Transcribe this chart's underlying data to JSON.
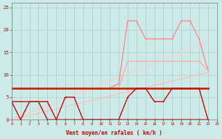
{
  "xlabel": "Vent moyen/en rafales ( km/h )",
  "xlim": [
    0,
    23
  ],
  "ylim": [
    0,
    26
  ],
  "background_color": "#cceae7",
  "grid_color": "#aacccc",
  "xlabel_color": "#cc0000",
  "tick_color": "#cc0000",
  "lines": [
    {
      "x": [
        0,
        1,
        2,
        3,
        4,
        5,
        6,
        7,
        8,
        9,
        10,
        11,
        12,
        13,
        14,
        15,
        16,
        17,
        18,
        19,
        20,
        21,
        22
      ],
      "y": [
        7,
        7,
        7,
        7,
        7,
        7,
        7,
        7,
        7,
        7,
        7,
        7,
        7,
        7,
        7,
        7,
        7,
        7,
        7,
        7,
        7,
        7,
        7
      ],
      "color": "#ffaaaa",
      "lw": 0.8,
      "marker": "+"
    },
    {
      "x": [
        0,
        1,
        2,
        3,
        4,
        5,
        6,
        7,
        8,
        9,
        10,
        11,
        12,
        13,
        14,
        15,
        16,
        17,
        18,
        19,
        20,
        21,
        22
      ],
      "y": [
        0,
        0.48,
        0.96,
        1.43,
        1.91,
        2.39,
        2.87,
        3.35,
        3.83,
        4.3,
        4.78,
        5.26,
        5.74,
        6.22,
        6.7,
        7.17,
        7.65,
        8.13,
        8.61,
        9.09,
        9.57,
        10.04,
        10.52
      ],
      "color": "#ffbbbb",
      "lw": 0.8,
      "marker": "+"
    },
    {
      "x": [
        0,
        1,
        2,
        3,
        4,
        5,
        6,
        7,
        8,
        9,
        10,
        11,
        12,
        13,
        14,
        15,
        16,
        17,
        18,
        19,
        20,
        21,
        22
      ],
      "y": [
        0,
        0.78,
        1.57,
        2.35,
        3.13,
        3.91,
        4.7,
        5.48,
        6.26,
        7.04,
        7.83,
        8.61,
        9.39,
        10.17,
        10.96,
        11.74,
        12.52,
        13.3,
        14.09,
        14.87,
        15.65,
        16.43,
        17.22
      ],
      "color": "#ffcccc",
      "lw": 0.8,
      "marker": "+"
    },
    {
      "x": [
        0,
        1,
        2,
        3,
        4,
        5,
        6,
        7,
        8,
        9,
        10,
        11,
        12,
        13,
        14,
        15,
        16,
        17,
        18,
        19,
        20,
        21,
        22
      ],
      "y": [
        7,
        7,
        7,
        7,
        7,
        7,
        7,
        7,
        7,
        7,
        7,
        7,
        8,
        22,
        22,
        18,
        18,
        18,
        18,
        22,
        22,
        18,
        11
      ],
      "color": "#ff8888",
      "lw": 1.0,
      "marker": "+"
    },
    {
      "x": [
        0,
        1,
        2,
        3,
        4,
        5,
        6,
        7,
        8,
        9,
        10,
        11,
        12,
        13,
        14,
        15,
        16,
        17,
        18,
        19,
        20,
        21,
        22
      ],
      "y": [
        7,
        7,
        7,
        7,
        7,
        7,
        7,
        7,
        7,
        7,
        7,
        7,
        7,
        13,
        13,
        13,
        13,
        13,
        13,
        13,
        13,
        13,
        11
      ],
      "color": "#ffaaaa",
      "lw": 1.0,
      "marker": "+"
    },
    {
      "x": [
        0,
        1,
        2,
        3,
        4,
        5,
        6,
        7,
        8,
        9,
        10,
        11,
        12,
        13,
        14,
        15,
        16,
        17,
        18,
        19,
        20,
        21,
        22
      ],
      "y": [
        7,
        7,
        7,
        7,
        7,
        7,
        7,
        7,
        7,
        7,
        7,
        7,
        7,
        7,
        7,
        7,
        7,
        7,
        7,
        7,
        7,
        7,
        7
      ],
      "color": "#cc2200",
      "lw": 2.0,
      "marker": "+"
    },
    {
      "x": [
        0,
        1,
        2,
        3,
        4,
        5,
        6,
        7,
        8,
        9,
        10,
        11,
        12,
        13,
        14,
        15,
        16,
        17,
        18,
        19,
        20,
        21,
        22
      ],
      "y": [
        4,
        4,
        4,
        4,
        4,
        0,
        5,
        5,
        0,
        0,
        0,
        0,
        0,
        5,
        7,
        7,
        4,
        4,
        7,
        7,
        7,
        7,
        0
      ],
      "color": "#cc0000",
      "lw": 1.0,
      "marker": "+"
    },
    {
      "x": [
        0,
        1,
        2,
        3,
        4,
        5,
        6,
        7,
        8,
        9,
        10,
        11,
        12,
        13,
        14,
        15,
        16,
        17,
        18,
        19,
        20,
        21,
        22
      ],
      "y": [
        4,
        0,
        4,
        4,
        0,
        0,
        0,
        0,
        0,
        0,
        0,
        0,
        0,
        0,
        0,
        0,
        0,
        0,
        0,
        0,
        0,
        0,
        0
      ],
      "color": "#bb0000",
      "lw": 1.0,
      "marker": "+"
    }
  ],
  "ytick_vals": [
    0,
    5,
    10,
    15,
    20,
    25
  ]
}
